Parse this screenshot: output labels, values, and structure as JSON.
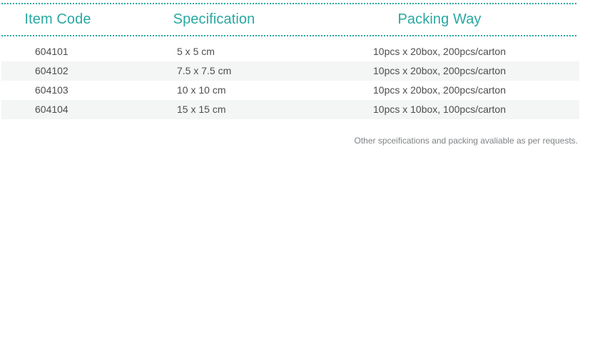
{
  "table": {
    "columns": [
      {
        "label": "Item Code"
      },
      {
        "label": "Specification"
      },
      {
        "label": "Packing Way"
      }
    ],
    "rows": [
      {
        "item_code": "604101",
        "specification": "5 x 5 cm",
        "packing_way": "10pcs x 20box, 200pcs/carton"
      },
      {
        "item_code": "604102",
        "specification": "7.5 x 7.5 cm",
        "packing_way": "10pcs x 20box, 200pcs/carton"
      },
      {
        "item_code": "604103",
        "specification": "10 x 10 cm",
        "packing_way": "10pcs x 20box, 200pcs/carton"
      },
      {
        "item_code": "604104",
        "specification": "15 x 15 cm",
        "packing_way": "10pcs x 10box, 100pcs/carton"
      }
    ]
  },
  "note": "Other spceifications and packing avaliable as per requests.",
  "colors": {
    "accent": "#29a8a2",
    "row_stripe": "#f4f5f5",
    "body_text": "#4d4d4f",
    "note_text": "#808386"
  }
}
